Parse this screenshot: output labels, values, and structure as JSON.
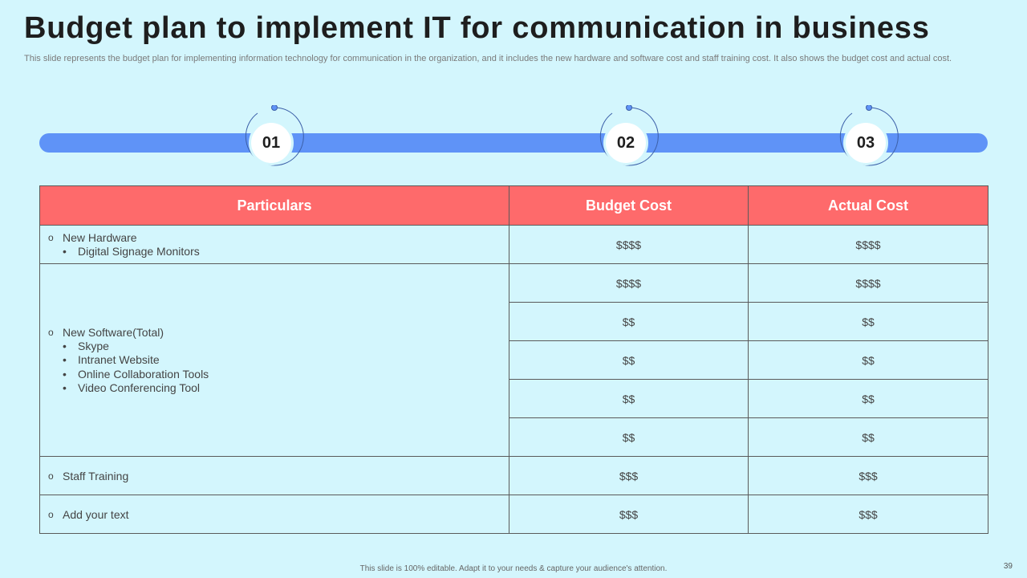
{
  "title": "Budget plan to implement IT for communication in business",
  "subtitle": "This slide represents the budget plan for implementing information technology for communication in the organization, and it includes the new hardware and software cost and staff training cost. It also shows the budget cost and actual cost.",
  "colors": {
    "background": "#d3f6fd",
    "timeline": "#5f93f7",
    "header": "#fe6a6b"
  },
  "steps": [
    "01",
    "02",
    "03"
  ],
  "table": {
    "headers": [
      "Particulars",
      "Budget Cost",
      "Actual Cost"
    ],
    "groups": [
      {
        "label": "New Hardware",
        "subitems": [
          "Digital Signage Monitors"
        ],
        "rows": [
          [
            "$$$$",
            "$$$$"
          ]
        ]
      },
      {
        "label": "New Software(Total)",
        "subitems": [
          "Skype",
          "Intranet Website",
          "Online Collaboration Tools",
          "Video Conferencing Tool"
        ],
        "rows": [
          [
            "$$$$",
            "$$$$"
          ],
          [
            "$$",
            "$$"
          ],
          [
            "$$",
            "$$"
          ],
          [
            "$$",
            "$$"
          ],
          [
            "$$",
            "$$"
          ]
        ]
      },
      {
        "label": "Staff Training",
        "subitems": [],
        "rows": [
          [
            "$$$",
            "$$$"
          ]
        ]
      },
      {
        "label": "Add your text",
        "subitems": [],
        "rows": [
          [
            "$$$",
            "$$$"
          ]
        ]
      }
    ]
  },
  "footer": "This slide is 100% editable.  Adapt it to your needs & capture your audience's attention.",
  "page_number": "39"
}
